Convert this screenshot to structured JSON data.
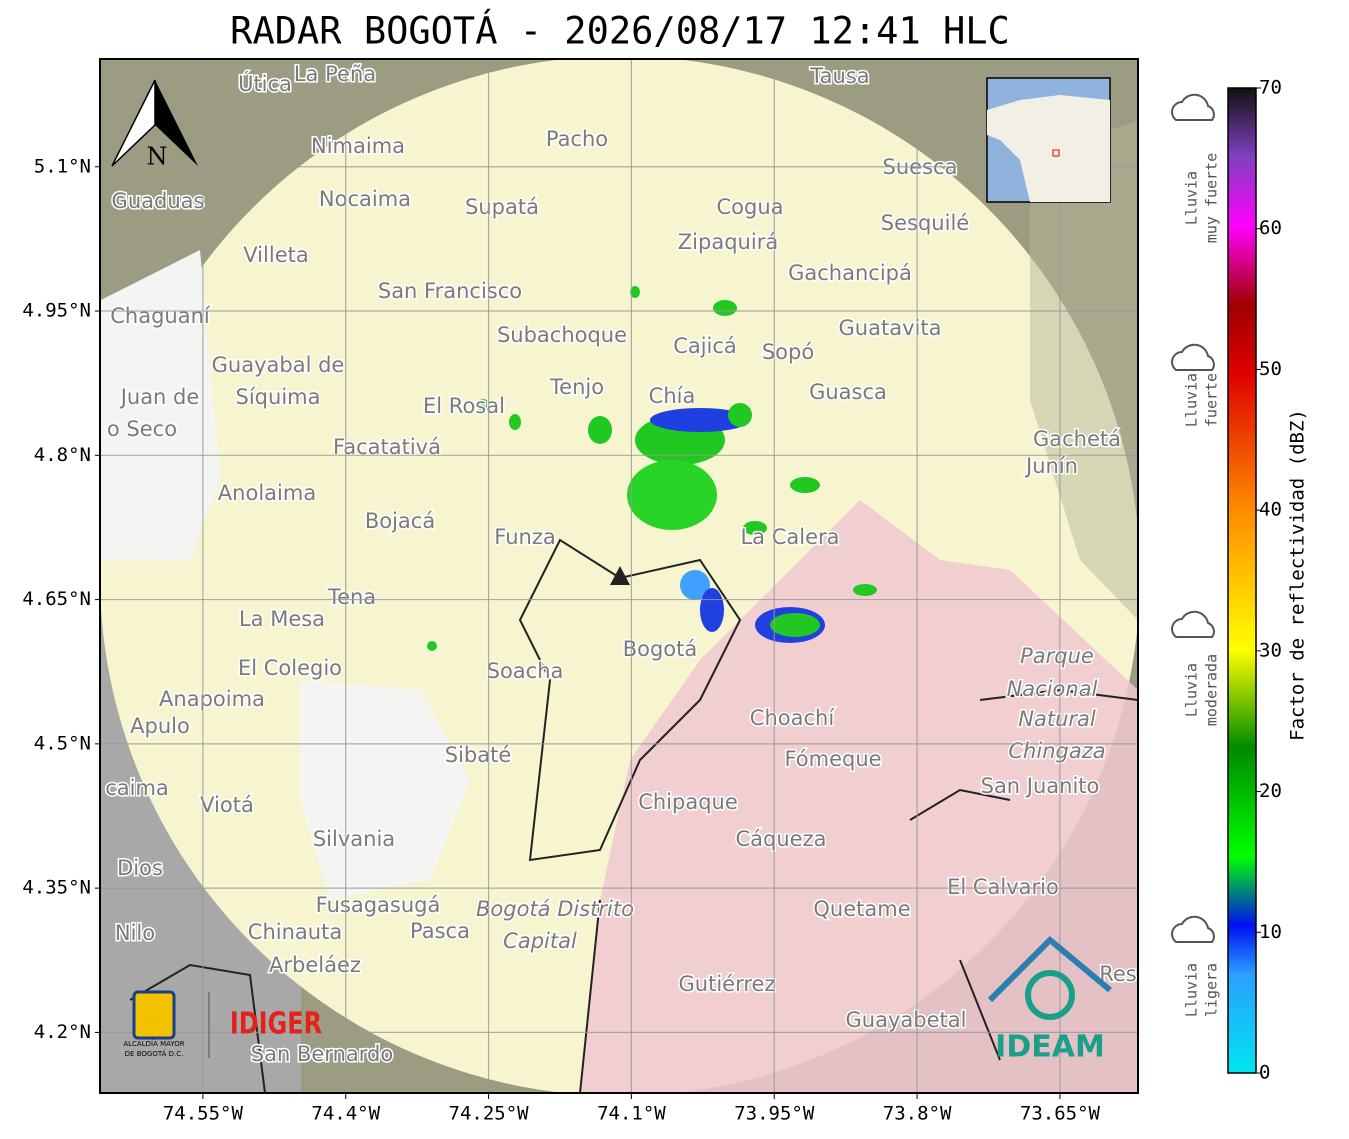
{
  "title": "RADAR BOGOTÁ - 2026/08/17 12:41 HLC",
  "map": {
    "xlim": [
      -74.657,
      -73.568
    ],
    "ylim": [
      4.137,
      5.211
    ],
    "xticks": [
      {
        "value": -74.55,
        "label": "74.55°W"
      },
      {
        "value": -74.4,
        "label": "74.4°W"
      },
      {
        "value": -74.25,
        "label": "74.25°W"
      },
      {
        "value": -74.1,
        "label": "74.1°W"
      },
      {
        "value": -73.95,
        "label": "73.95°W"
      },
      {
        "value": -73.8,
        "label": "73.8°W"
      },
      {
        "value": -73.65,
        "label": "73.65°W"
      }
    ],
    "yticks": [
      {
        "value": 5.1,
        "label": "5.1°N"
      },
      {
        "value": 4.95,
        "label": "4.95°N"
      },
      {
        "value": 4.8,
        "label": "4.8°N"
      },
      {
        "value": 4.65,
        "label": "4.65°N"
      },
      {
        "value": 4.5,
        "label": "4.5°N"
      },
      {
        "value": 4.35,
        "label": "4.35°N"
      },
      {
        "value": 4.2,
        "label": "4.2°N"
      }
    ],
    "places": [
      "Útica",
      "La Peña",
      "Tausa",
      "Pacho",
      "Nimaima",
      "Guaduas",
      "Nocaima",
      "Supatá",
      "Cogua",
      "Suesca",
      "Sesquilé",
      "Zipaquirá",
      "Villeta",
      "Gachancipá",
      "San Francisco",
      "Chaguaní",
      "Guatavita",
      "Subachoque",
      "Cajicá",
      "Sopó",
      "Guayabal de",
      "Síquima",
      "Tenjo",
      "Chía",
      "Guasca",
      "El Rosal",
      "Juan de",
      "o Seco",
      "Facatativá",
      "Gachetá",
      "Junín",
      "Anolaima",
      "Bojacá",
      "Funza",
      "La Calera",
      "Tena",
      "La Mesa",
      "El Colegio",
      "Soacha",
      "Bogotá",
      "Parque",
      "Nacional",
      "Natural",
      "Chingaza",
      "Anapoima",
      "Apulo",
      "Choachí",
      "Sibaté",
      "Fómeque",
      "San Juanito",
      "caima",
      "Viotá",
      "Chipaque",
      "Silvania",
      "Cáqueza",
      "Dios",
      "El Calvario",
      "Fusagasugá",
      "Bogotá Distrito",
      "Capital",
      "Quetame",
      "Nilo",
      "Chinauta",
      "Pasca",
      "Arbeláez",
      "Gutiérrez",
      "Res",
      "Guayabetal",
      "San Bernardo"
    ],
    "north": "N"
  },
  "colorbar": {
    "label": "Factor de reflectividad (dBZ)",
    "lim": [
      0,
      70
    ],
    "ticks": [
      0,
      10,
      20,
      30,
      40,
      50,
      60,
      70
    ]
  },
  "legend": [
    [
      "Lluvia",
      "muy fuerte"
    ],
    [
      "Lluvia",
      "fuerte"
    ],
    [
      "Lluvia",
      "moderada"
    ],
    [
      "Lluvia",
      "ligera"
    ]
  ],
  "logos": {
    "alcaldia": [
      "ALCALDÍA MAYOR",
      "DE BOGOTÁ D.C."
    ],
    "idiger": "IDIGER",
    "ideam": "IDEAM"
  }
}
